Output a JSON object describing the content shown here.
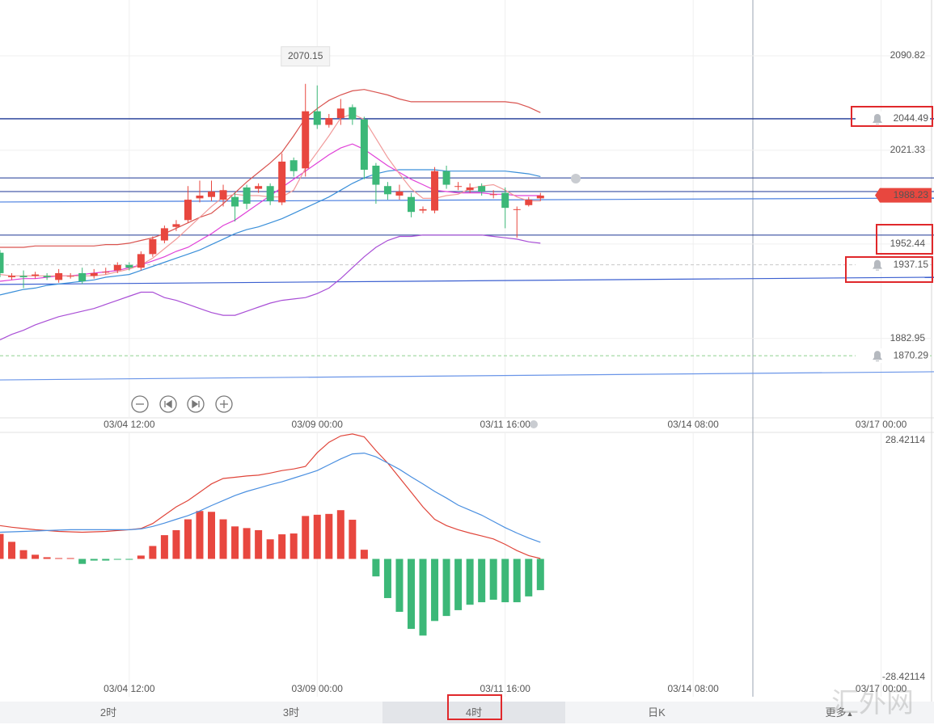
{
  "chart_data": [
    {
      "type": "candlestick",
      "x": [
        0,
        1,
        2,
        3,
        4,
        5,
        6,
        7,
        8,
        9,
        10,
        11,
        12,
        13,
        14,
        15,
        16,
        17,
        18,
        19,
        20,
        21,
        22,
        23,
        24,
        25,
        26,
        27,
        28,
        29,
        30,
        31,
        32,
        33,
        34,
        35,
        36,
        37,
        38,
        39,
        40,
        41,
        42,
        43,
        44,
        45,
        46
      ],
      "ohlc": {
        "open": [
          1946,
          1928,
          1929,
          1929,
          1929,
          1926,
          1929,
          1931,
          1929,
          1932,
          1933,
          1937,
          1935,
          1945,
          1955,
          1965,
          1970,
          1986,
          1987,
          1985,
          1987,
          1994,
          1993,
          1995,
          1983,
          2014,
          2008,
          2050,
          2040,
          2045,
          2053,
          2044,
          2010,
          1995,
          1988,
          1987,
          1977,
          1977,
          2006,
          1995,
          1992,
          1995,
          1989,
          1990,
          1978,
          1981,
          1986
        ],
        "high": [
          1948,
          1931,
          1933,
          1932,
          1931,
          1934,
          1931,
          1935,
          1934,
          1935,
          1939,
          1939,
          1947,
          1958,
          1966,
          1970,
          1995,
          1999,
          1999,
          1996,
          1990,
          1996,
          1997,
          1997,
          2019,
          2016,
          2070.15,
          2069,
          2048,
          2059,
          2055,
          2046,
          2012,
          1998,
          1996,
          1990,
          1980,
          2009,
          2010,
          1998,
          1997,
          1997,
          1992,
          1994,
          1980,
          1987,
          1990
        ],
        "low": [
          1928,
          1926,
          1920,
          1927,
          1926,
          1924,
          1927,
          1923,
          1927,
          1930,
          1931,
          1933,
          1933,
          1943,
          1953,
          1962,
          1968,
          1983,
          1984,
          1980,
          1969,
          1978,
          1990,
          1981,
          1981,
          2002,
          2002,
          2037,
          2038,
          2040,
          2040,
          2000,
          1982,
          1985,
          1985,
          1972,
          1975,
          1975,
          1993,
          1992,
          1990,
          1988,
          1986,
          1964,
          1957,
          1980,
          1984
        ],
        "close": [
          1931,
          1929,
          1928,
          1930,
          1928,
          1931,
          1929,
          1925,
          1931,
          1932,
          1937,
          1935,
          1945,
          1956,
          1964,
          1967,
          1985,
          1988,
          1991,
          1992,
          1980,
          1982,
          1995,
          1984,
          2013,
          2006,
          2050,
          2040,
          2045,
          2052,
          2044,
          2007,
          1996,
          1989,
          1991,
          1976,
          1978,
          2006,
          1996,
          1995,
          1994,
          1991,
          1989,
          1979,
          1978,
          1985,
          1988
        ]
      },
      "up_color": "#e8473f",
      "down_color": "#3cb878",
      "lines": [
        {
          "color": "#d9534f",
          "values": [
            1950,
            1950,
            1950,
            1951,
            1951,
            1951,
            1951,
            1951,
            1951,
            1952,
            1952,
            1953,
            1955,
            1957,
            1960,
            1964,
            1968,
            1972,
            1975,
            1982,
            1990,
            1998,
            2005,
            2012,
            2020,
            2032,
            2045,
            2052,
            2058,
            2062,
            2065,
            2066,
            2064,
            2062,
            2059,
            2057,
            2057,
            2057,
            2057,
            2057,
            2057,
            2057,
            2057,
            2057,
            2056,
            2053,
            2049
          ]
        },
        {
          "color": "#3a8fd9",
          "values": [
            1915,
            1917,
            1919,
            1920,
            1922,
            1923,
            1924,
            1925,
            1926,
            1928,
            1929,
            1930,
            1933,
            1936,
            1939,
            1942,
            1945,
            1948,
            1952,
            1956,
            1960,
            1963,
            1965,
            1968,
            1971,
            1975,
            1979,
            1983,
            1987,
            1992,
            1997,
            2001,
            2004,
            2006,
            2007,
            2007,
            2007,
            2007,
            2006,
            2006,
            2006,
            2006,
            2006,
            2006,
            2005,
            2004,
            2002
          ]
        },
        {
          "color": "#a94fd6",
          "values": [
            1882,
            1886,
            1889,
            1893,
            1896,
            1899,
            1901,
            1903,
            1905,
            1908,
            1911,
            1914,
            1917,
            1917,
            1913,
            1911,
            1908,
            1905,
            1902,
            1900,
            1900,
            1903,
            1906,
            1909,
            1911,
            1912,
            1913,
            1916,
            1920,
            1927,
            1935,
            1943,
            1950,
            1955,
            1958,
            1958,
            1959,
            1959,
            1959,
            1959,
            1959,
            1959,
            1958,
            1957,
            1956,
            1954,
            1953
          ]
        },
        {
          "color": "#e040d8",
          "values": [
            1925,
            1926,
            1927,
            1927,
            1928,
            1929,
            1929,
            1930,
            1931,
            1932,
            1933,
            1935,
            1937,
            1940,
            1943,
            1947,
            1950,
            1955,
            1960,
            1966,
            1970,
            1976,
            1982,
            1988,
            1994,
            2000,
            2006,
            2012,
            2018,
            2023,
            2026,
            2022,
            2016,
            2010,
            2005,
            2000,
            1996,
            1992,
            1991,
            1990,
            1990,
            1990,
            1989,
            1989,
            1988,
            1988,
            1988
          ]
        },
        {
          "color": "#f19a9a",
          "values": [
            1930,
            1929,
            1929,
            1929,
            1929,
            1929,
            1929,
            1929,
            1929,
            1930,
            1932,
            1934,
            1937,
            1942,
            1949,
            1956,
            1964,
            1972,
            1980,
            1987,
            1989,
            1988,
            1988,
            1987,
            1987,
            1992,
            2008,
            2020,
            2032,
            2045,
            2048,
            2044,
            2030,
            2016,
            2004,
            1993,
            1986,
            1986,
            1988,
            1989,
            1993,
            1995,
            1996,
            1992,
            1987,
            1984,
            1984
          ]
        }
      ],
      "drawn_levels": {
        "color": "#1c3694",
        "values": [
          2001,
          1991,
          1959
        ]
      },
      "trend_lines": [
        {
          "color": "#4a7fe0",
          "values": [
            1983.3,
            1986.2
          ]
        },
        {
          "color": "#3b5fd0",
          "values": [
            1922.7,
            1928.0
          ]
        },
        {
          "color": "#6a95e8",
          "values": [
            1852.5,
            1858.5
          ]
        }
      ],
      "alerts": [
        {
          "value": 2044.49,
          "line_color": "#1c3694",
          "dash": false
        },
        {
          "value": 1937.15,
          "line_color": "#c8c8c8",
          "dash": true
        },
        {
          "value": 1870.29,
          "line_color": "#8fd18f",
          "dash": true
        }
      ],
      "last_price": {
        "value": 1988.23,
        "color": "#e8473f"
      },
      "xlim": [
        0,
        79.5
      ],
      "xticks": [
        {
          "value": 11,
          "label": "03/04 12:00"
        },
        {
          "value": 27,
          "label": "03/09 00:00"
        },
        {
          "value": 43,
          "label": "03/11 16:00"
        },
        {
          "value": 59,
          "label": "03/14 08:00"
        },
        {
          "value": 75,
          "label": "03/17 00:00"
        }
      ],
      "ylim": [
        1824.6,
        2131.8
      ],
      "yticks": [
        2090.82,
        2021.33,
        1952.44,
        1882.95
      ],
      "grid": true
    },
    {
      "type": "macd",
      "histogram": [
        6.0,
        4.1,
        2.1,
        1.0,
        0.4,
        0.2,
        0.2,
        -1.2,
        -0.4,
        -0.4,
        -0.2,
        -0.2,
        0.8,
        3.1,
        5.7,
        6.9,
        9.5,
        11.5,
        11.3,
        9.5,
        7.8,
        7.4,
        6.9,
        4.7,
        5.9,
        6.1,
        10.3,
        10.6,
        10.8,
        11.7,
        9.4,
        2.2,
        -4.2,
        -9.4,
        -12.7,
        -16.8,
        -18.4,
        -14.9,
        -13.7,
        -12.3,
        -11.0,
        -10.4,
        -9.8,
        -10.4,
        -10.4,
        -9.0,
        -7.5
      ],
      "up_color": "#e8473f",
      "down_color": "#3cb878",
      "lines": [
        {
          "color": "#e0453a",
          "values": [
            8.0,
            7.6,
            7.3,
            7.0,
            6.8,
            6.6,
            6.5,
            6.4,
            6.5,
            6.6,
            6.8,
            7.0,
            7.3,
            8.5,
            10.5,
            12.5,
            14.0,
            16.0,
            18.0,
            19.3,
            19.6,
            19.9,
            20.1,
            20.6,
            21.2,
            21.6,
            22.2,
            25.5,
            28.0,
            29.5,
            30.0,
            29.3,
            26.0,
            23.0,
            19.5,
            16.0,
            12.5,
            9.5,
            8.0,
            7.0,
            6.2,
            5.5,
            4.8,
            3.5,
            2.0,
            0.8,
            0.1
          ]
        },
        {
          "color": "#4a8fe0",
          "values": [
            6.4,
            6.5,
            6.6,
            6.7,
            6.8,
            6.9,
            7.0,
            7.0,
            7.0,
            7.0,
            7.0,
            7.0,
            7.2,
            7.8,
            8.6,
            9.5,
            10.4,
            11.5,
            12.8,
            14.0,
            15.2,
            16.2,
            17.0,
            17.8,
            18.5,
            19.4,
            20.3,
            21.2,
            22.6,
            24.0,
            25.2,
            25.4,
            24.5,
            23.0,
            21.5,
            19.7,
            18.0,
            16.2,
            14.6,
            12.9,
            11.7,
            10.5,
            9.0,
            7.5,
            6.2,
            5.0,
            4.0
          ]
        }
      ],
      "xticks": [
        {
          "value": 11,
          "label": "03/04 12:00"
        },
        {
          "value": 27,
          "label": "03/09 00:00"
        },
        {
          "value": 43,
          "label": "03/11 16:00"
        },
        {
          "value": 59,
          "label": "03/14 08:00"
        },
        {
          "value": 75,
          "label": "03/17 00:00"
        }
      ],
      "ylim": [
        -28.42114,
        28.42114
      ],
      "yticks": [
        28.42114,
        -28.42114
      ]
    }
  ],
  "periods": [
    "2时",
    "3时",
    "4时",
    "日K",
    "更多"
  ],
  "active_period": 2,
  "watermark": "汇外网"
}
